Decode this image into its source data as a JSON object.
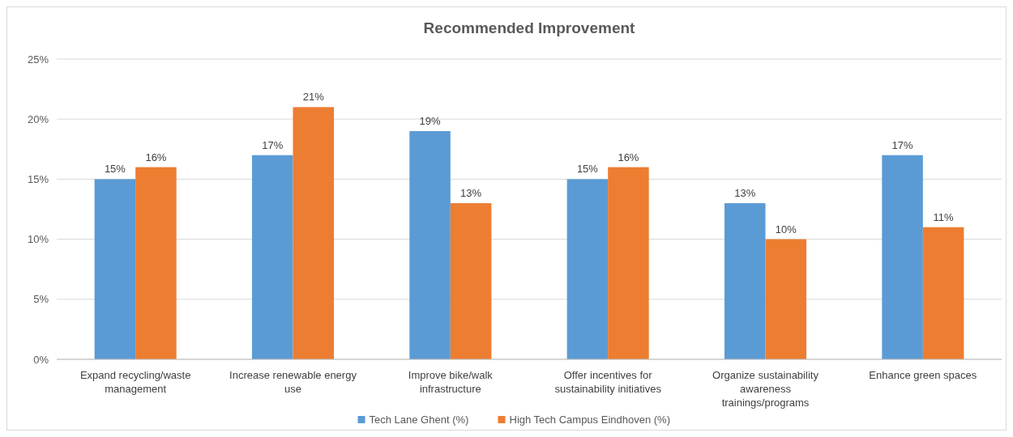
{
  "chart_data": {
    "type": "bar",
    "title": "Recommended Improvement",
    "categories": [
      "Expand recycling/waste management",
      "Increase renewable energy use",
      "Improve bike/walk infrastructure",
      "Offer incentives for sustainability initiatives",
      "Organize sustainability awareness trainings/programs",
      "Enhance green spaces"
    ],
    "series": [
      {
        "name": "Tech Lane Ghent (%)",
        "color": "#5b9bd5",
        "values": [
          15,
          17,
          19,
          15,
          13,
          17
        ],
        "value_labels": [
          "15%",
          "17%",
          "19%",
          "15%",
          "13%",
          "17%"
        ]
      },
      {
        "name": "High Tech Campus Eindhoven (%)",
        "color": "#ed7d31",
        "values": [
          16,
          21,
          13,
          16,
          10,
          11
        ],
        "value_labels": [
          "16%",
          "21%",
          "13%",
          "16%",
          "10%",
          "11%"
        ]
      }
    ],
    "ylim": [
      0,
      25
    ],
    "yticks": [
      {
        "value": 0,
        "label": "0%"
      },
      {
        "value": 5,
        "label": "5%"
      },
      {
        "value": 10,
        "label": "10%"
      },
      {
        "value": 15,
        "label": "15%"
      },
      {
        "value": 20,
        "label": "20%"
      },
      {
        "value": 25,
        "label": "25%"
      }
    ],
    "grid": "y",
    "legend": "bottom"
  }
}
